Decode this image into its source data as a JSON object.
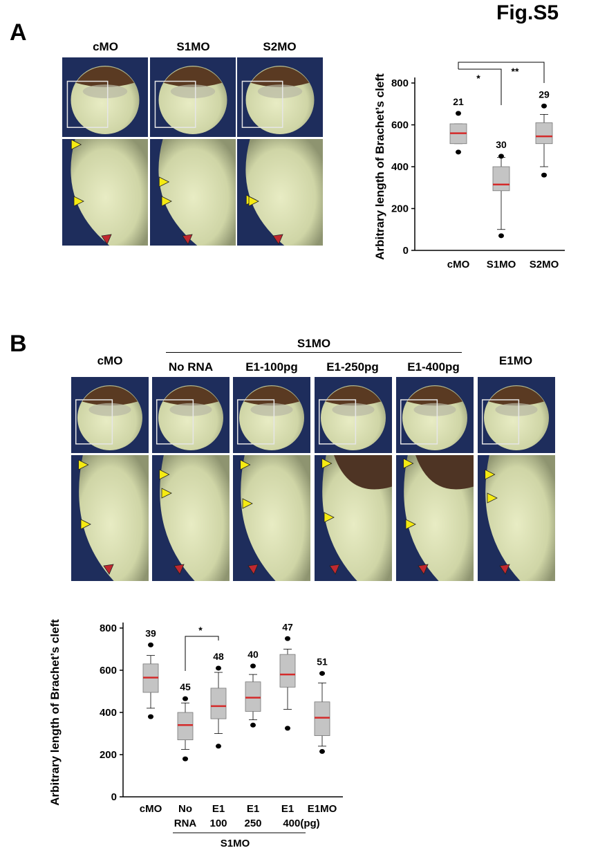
{
  "figure_title": "Fig.S5",
  "panels": {
    "A": {
      "letter": "A",
      "columns": [
        "cMO",
        "S1MO",
        "S2MO"
      ]
    },
    "B": {
      "letter": "B",
      "group_label": "S1MO",
      "columns": [
        "cMO",
        "No RNA",
        "E1-100pg",
        "E1-250pg",
        "E1-400pg",
        "E1MO"
      ]
    }
  },
  "colors": {
    "median_line": "#d42a2a",
    "box_fill": "#c4c4c4",
    "yellow_arrowhead": "#f5ea12",
    "red_arrowhead": "#c0282f",
    "background_blue": "#1e2d5c"
  },
  "chart_data": [
    {
      "type": "box",
      "ylabel": "Arbitrary length of Brachet's cleft",
      "ylim": [
        0,
        800
      ],
      "yticks": [
        "0",
        "200",
        "400",
        "600",
        "800"
      ],
      "categories": [
        "cMO",
        "S1MO",
        "S2MO"
      ],
      "n_labels": [
        "21",
        "30",
        "29"
      ],
      "boxes": [
        {
          "whisker_low": 510,
          "q1": 510,
          "median": 560,
          "q3": 605,
          "whisker_high": 605,
          "outliers": [
            470,
            655
          ]
        },
        {
          "whisker_low": 100,
          "q1": 285,
          "median": 315,
          "q3": 400,
          "whisker_high": 445,
          "outliers": [
            70,
            450
          ]
        },
        {
          "whisker_low": 400,
          "q1": 510,
          "median": 545,
          "q3": 610,
          "whisker_high": 650,
          "outliers": [
            360,
            690
          ]
        }
      ],
      "significance": [
        {
          "pair": [
            "cMO",
            "S1MO"
          ],
          "label": "*"
        },
        {
          "pair": [
            "cMO",
            "S2MO"
          ],
          "label": "**"
        }
      ]
    },
    {
      "type": "box",
      "ylabel": "Arbitrary length of Brachet's cleft",
      "ylim": [
        0,
        800
      ],
      "yticks": [
        "0",
        "200",
        "400",
        "600",
        "800"
      ],
      "categories": [
        {
          "line1": "cMO",
          "line2": ""
        },
        {
          "line1": "No",
          "line2": "RNA"
        },
        {
          "line1": "E1",
          "line2": "100"
        },
        {
          "line1": "E1",
          "line2": "250"
        },
        {
          "line1": "E1",
          "line2": "400(pg)"
        },
        {
          "line1": "E1MO",
          "line2": ""
        }
      ],
      "group_label": "S1MO",
      "n_labels": [
        "39",
        "45",
        "48",
        "40",
        "47",
        "51"
      ],
      "boxes": [
        {
          "whisker_low": 420,
          "q1": 495,
          "median": 565,
          "q3": 630,
          "whisker_high": 670,
          "outliers": [
            380,
            720
          ]
        },
        {
          "whisker_low": 225,
          "q1": 270,
          "median": 340,
          "q3": 400,
          "whisker_high": 445,
          "outliers": [
            180,
            465
          ]
        },
        {
          "whisker_low": 300,
          "q1": 370,
          "median": 430,
          "q3": 515,
          "whisker_high": 590,
          "outliers": [
            240,
            610
          ]
        },
        {
          "whisker_low": 365,
          "q1": 405,
          "median": 470,
          "q3": 545,
          "whisker_high": 580,
          "outliers": [
            340,
            620
          ]
        },
        {
          "whisker_low": 415,
          "q1": 520,
          "median": 580,
          "q3": 675,
          "whisker_high": 700,
          "outliers": [
            325,
            750
          ]
        },
        {
          "whisker_low": 240,
          "q1": 290,
          "median": 375,
          "q3": 450,
          "whisker_high": 540,
          "outliers": [
            215,
            585
          ]
        }
      ],
      "significance": [
        {
          "pair": [
            "No RNA",
            "E1 100"
          ],
          "label": "*"
        }
      ]
    }
  ]
}
